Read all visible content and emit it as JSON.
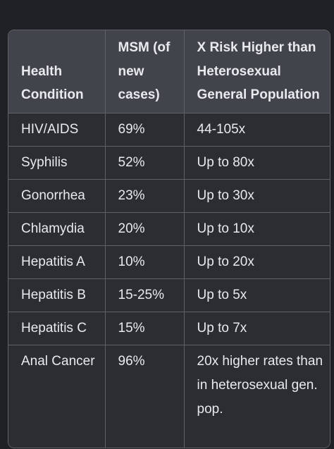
{
  "table": {
    "headers": [
      "Health Condition",
      "MSM (of new cases)",
      "X Risk Higher than Heterosexual General Population"
    ],
    "rows": [
      [
        "HIV/AIDS",
        "69%",
        "44-105x"
      ],
      [
        "Syphilis",
        "52%",
        "Up to 80x"
      ],
      [
        "Gonorrhea",
        "23%",
        "Up to 30x"
      ],
      [
        "Chlamydia",
        "20%",
        "Up to 10x"
      ],
      [
        "Hepatitis A",
        "10%",
        "Up to 20x"
      ],
      [
        "Hepatitis B",
        "15-25%",
        "Up to 5x"
      ],
      [
        "Hepatitis C",
        "15%",
        "Up to 7x"
      ],
      [
        "Anal Cancer",
        "96%",
        "20x higher rates than in heterosexual gen. pop."
      ]
    ]
  },
  "colors": {
    "background": "#202124",
    "header_bg": "#41444b",
    "row_bg": "#2b2d31",
    "border": "#5f6168",
    "text": "#e8eaed"
  }
}
